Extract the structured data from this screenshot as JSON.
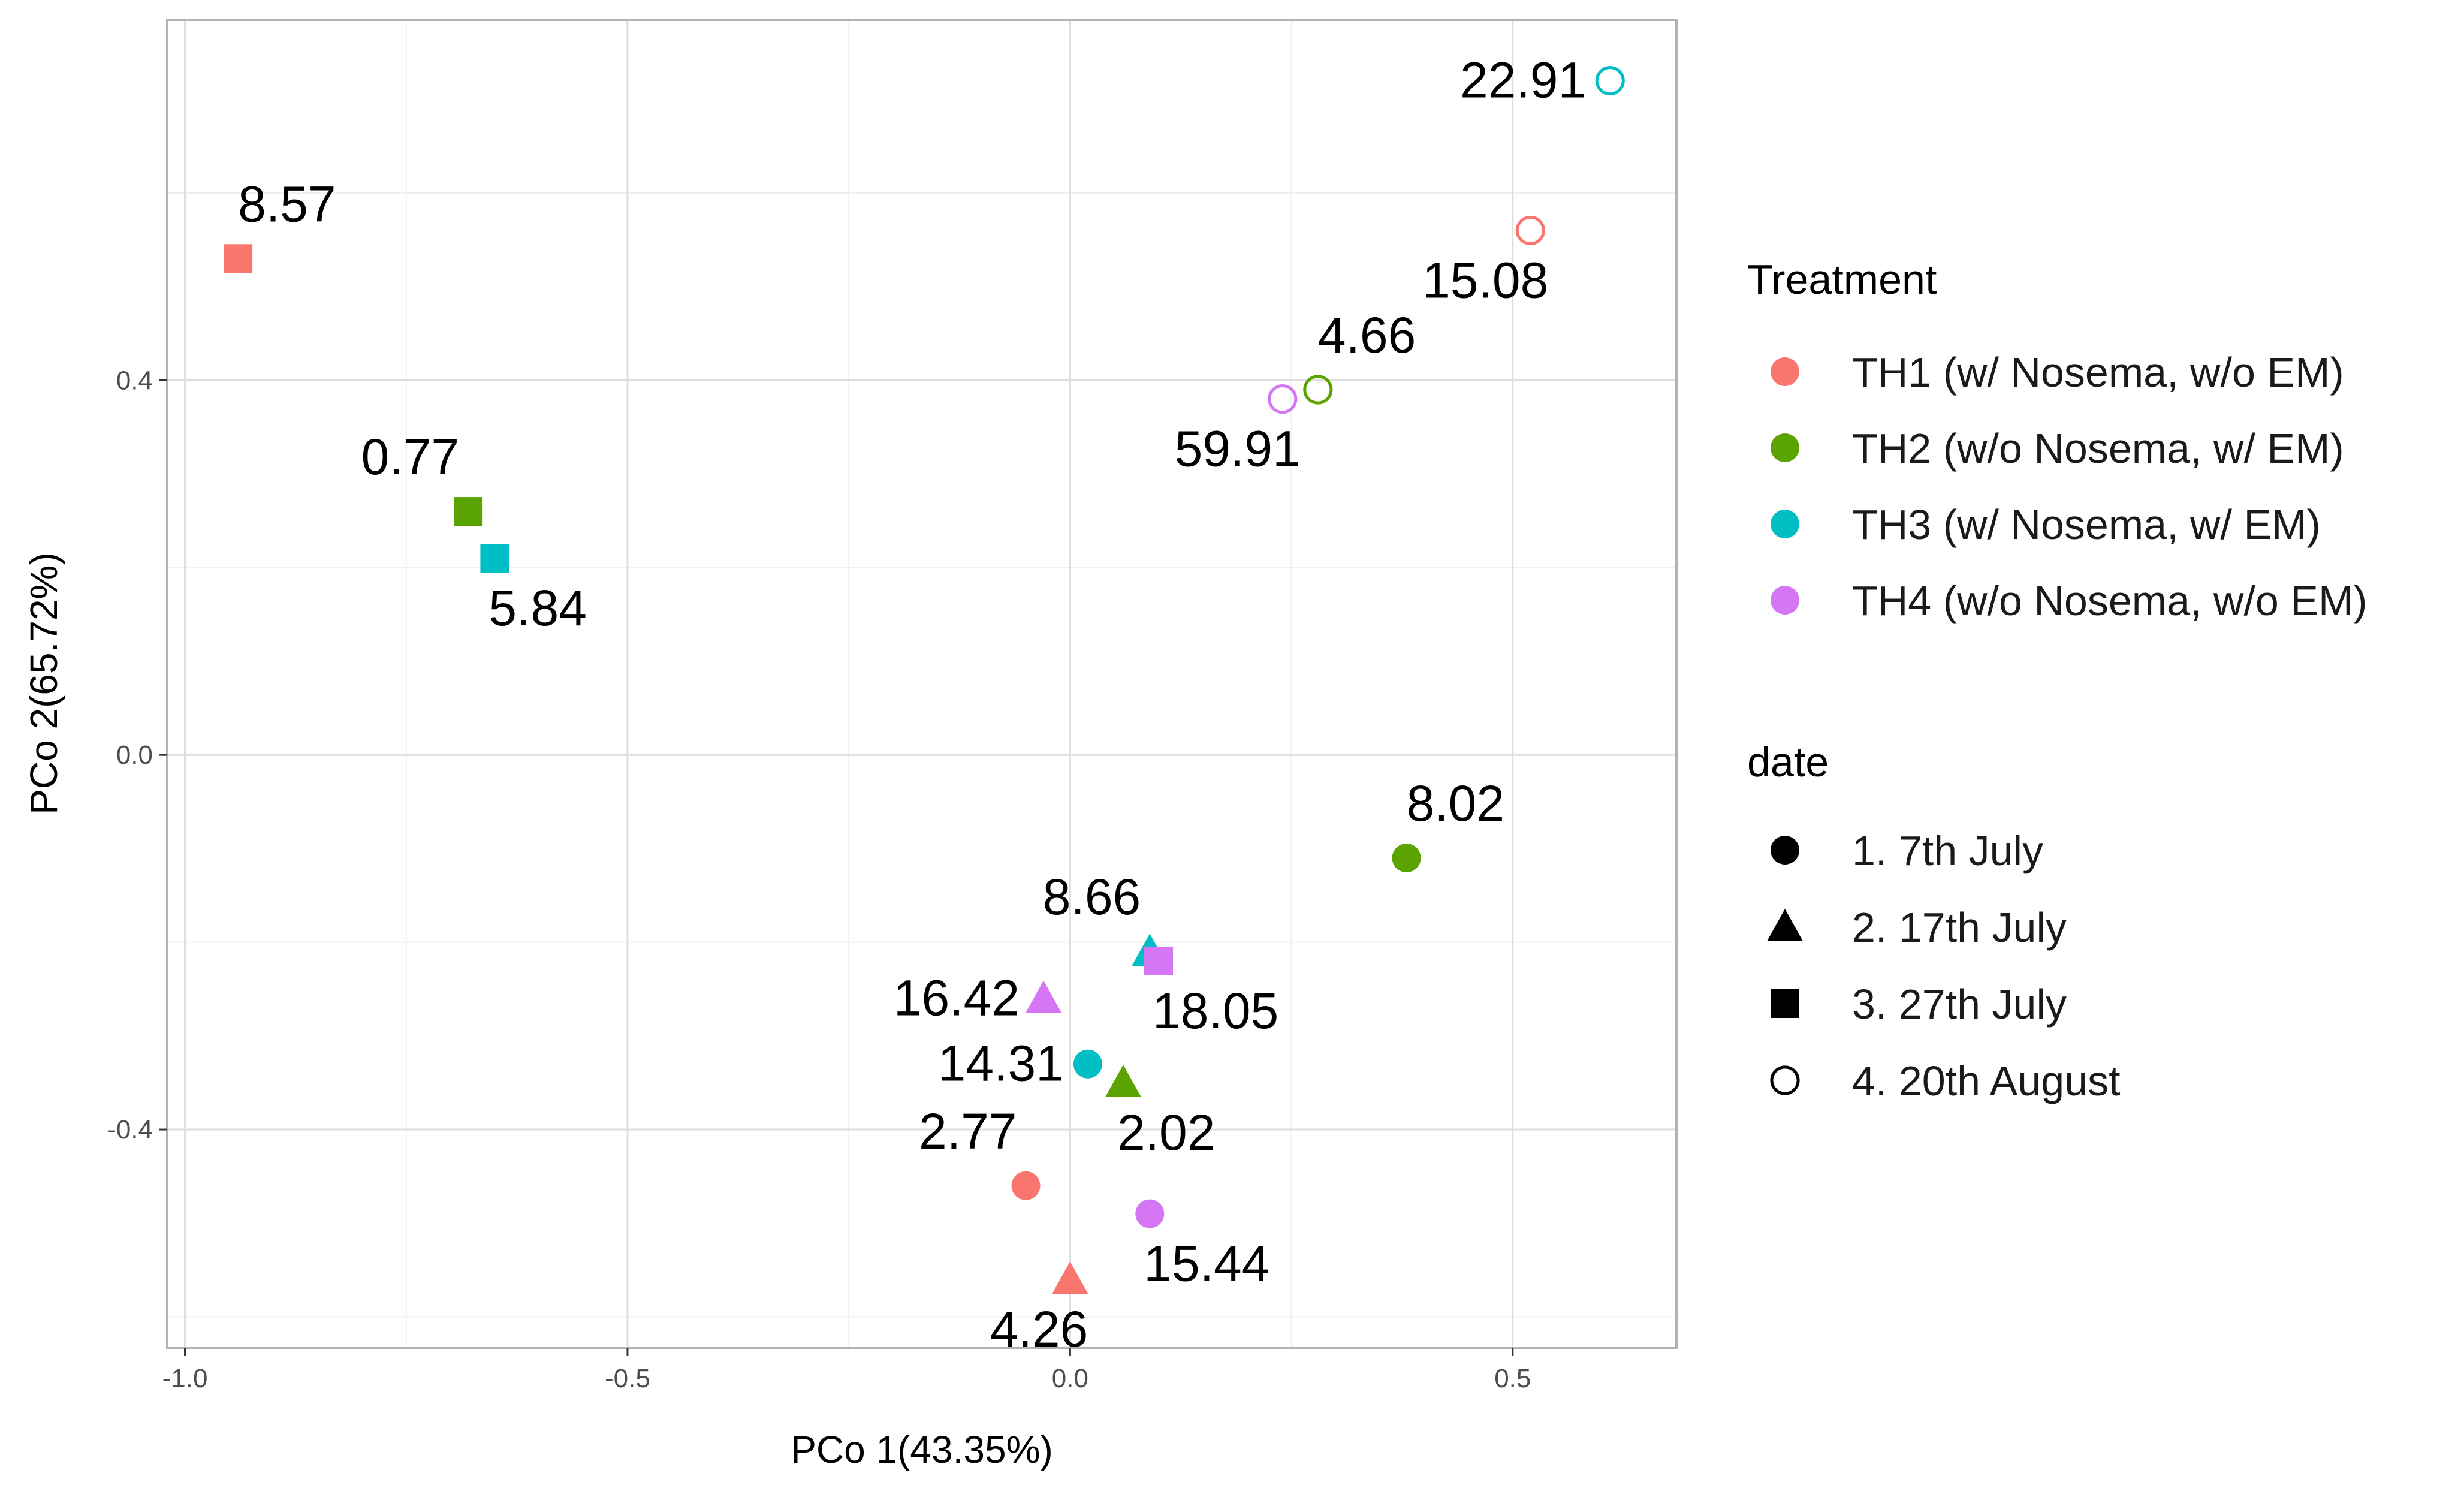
{
  "chart_data": {
    "type": "scatter",
    "title": "",
    "xlabel": "PCo 1(43.35%)",
    "ylabel": "PCo 2(65.72%)",
    "xlim": [
      -1.02,
      0.685
    ],
    "ylim": [
      -0.633,
      0.785
    ],
    "xticks": [
      -1.0,
      -0.5,
      0.0,
      0.5
    ],
    "xtick_labels": [
      "-1.0",
      "-0.5",
      "0.0",
      "0.5"
    ],
    "yticks": [
      -0.4,
      0.0,
      0.4
    ],
    "ytick_labels": [
      "-0.4",
      "0.0",
      "0.4"
    ],
    "grid": true,
    "legend_position": "right",
    "treatment_legend": {
      "title": "Treatment",
      "items": [
        {
          "key": "TH1",
          "label": "TH1 (w/ Nosema, w/o EM)",
          "color": "#F8766D"
        },
        {
          "key": "TH2",
          "label": "TH2 (w/o Nosema, w/ EM)",
          "color": "#5BA300"
        },
        {
          "key": "TH3",
          "label": "TH3 (w/ Nosema, w/ EM)",
          "color": "#00BFC4"
        },
        {
          "key": "TH4",
          "label": "TH4 (w/o Nosema, w/o EM)",
          "color": "#D576F5"
        }
      ]
    },
    "date_legend": {
      "title": "date",
      "items": [
        {
          "key": "d1",
          "label": "1. 7th July",
          "shape": "circle"
        },
        {
          "key": "d2",
          "label": "2. 17th July",
          "shape": "triangle"
        },
        {
          "key": "d3",
          "label": "3. 27th July",
          "shape": "square"
        },
        {
          "key": "d4",
          "label": "4. 20th August",
          "shape": "open-circle"
        }
      ]
    },
    "points": [
      {
        "x": -0.94,
        "y": 0.53,
        "treatment": "TH1",
        "date": "d3",
        "label": "8.57",
        "label_pos": "above-right"
      },
      {
        "x": -0.68,
        "y": 0.26,
        "treatment": "TH2",
        "date": "d3",
        "label": "0.77",
        "label_pos": "above-left"
      },
      {
        "x": -0.65,
        "y": 0.21,
        "treatment": "TH3",
        "date": "d3",
        "label": "5.84",
        "label_pos": "below"
      },
      {
        "x": 0.61,
        "y": 0.72,
        "treatment": "TH3",
        "date": "d4",
        "label": "22.91",
        "label_pos": "left"
      },
      {
        "x": 0.52,
        "y": 0.56,
        "treatment": "TH1",
        "date": "d4",
        "label": "15.08",
        "label_pos": "below-left"
      },
      {
        "x": 0.28,
        "y": 0.39,
        "treatment": "TH2",
        "date": "d4",
        "label": "4.66",
        "label_pos": "above-right"
      },
      {
        "x": 0.24,
        "y": 0.38,
        "treatment": "TH4",
        "date": "d4",
        "label": "59.91",
        "label_pos": "below-left"
      },
      {
        "x": 0.38,
        "y": -0.11,
        "treatment": "TH2",
        "date": "d1",
        "label": "8.02",
        "label_pos": "above-right"
      },
      {
        "x": 0.09,
        "y": -0.21,
        "treatment": "TH3",
        "date": "d2",
        "label": "8.66",
        "label_pos": "above-left"
      },
      {
        "x": 0.1,
        "y": -0.22,
        "treatment": "TH4",
        "date": "d3",
        "label": "18.05",
        "label_pos": "below"
      },
      {
        "x": -0.03,
        "y": -0.26,
        "treatment": "TH4",
        "date": "d2",
        "label": "16.42",
        "label_pos": "left"
      },
      {
        "x": 0.02,
        "y": -0.33,
        "treatment": "TH3",
        "date": "d1",
        "label": "14.31",
        "label_pos": "left"
      },
      {
        "x": 0.06,
        "y": -0.35,
        "treatment": "TH2",
        "date": "d2",
        "label": "2.02",
        "label_pos": "below"
      },
      {
        "x": -0.05,
        "y": -0.46,
        "treatment": "TH1",
        "date": "d1",
        "label": "2.77",
        "label_pos": "above-left"
      },
      {
        "x": 0.09,
        "y": -0.49,
        "treatment": "TH4",
        "date": "d1",
        "label": "15.44",
        "label_pos": "below"
      },
      {
        "x": 0.0,
        "y": -0.56,
        "treatment": "TH1",
        "date": "d2",
        "label": "4.26",
        "label_pos": "below-left"
      }
    ]
  }
}
